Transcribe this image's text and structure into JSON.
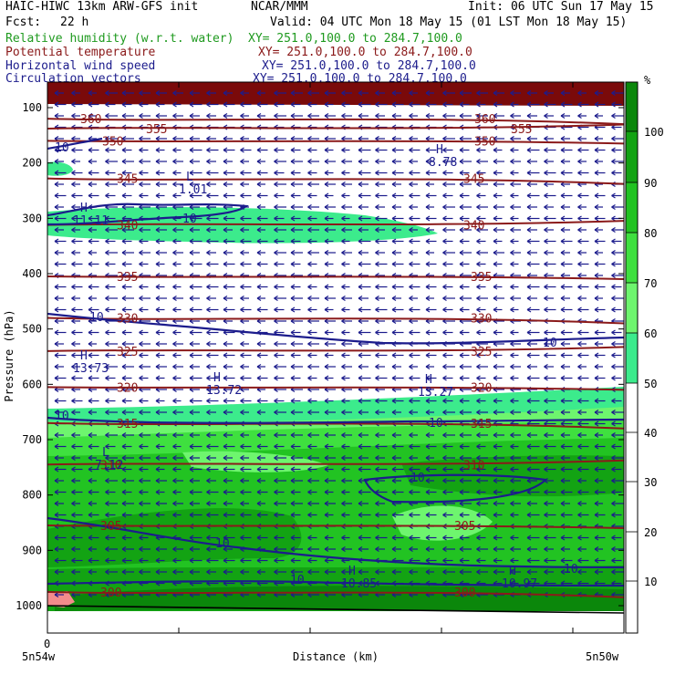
{
  "header": {
    "model": "HAIC-HIWC 13km ARW-GFS init",
    "org": "NCAR/MMM",
    "init": "Init: 06 UTC Sun 17 May 15",
    "fcst_label": "Fcst:",
    "fcst_value": "22 h",
    "valid": "Valid: 04 UTC Mon 18 May 15 (01 LST Mon 18 May 15)",
    "fields": [
      {
        "name": "Relative humidity (w.r.t. water)",
        "xy": "XY= 251.0,100.0 to 284.7,100.0",
        "color": "#1f9a1f"
      },
      {
        "name": "Potential temperature",
        "xy": "XY= 251.0,100.0 to 284.7,100.0",
        "color": "#8b1a1a"
      },
      {
        "name": "Horizontal wind speed",
        "xy": "XY= 251.0,100.0 to 284.7,100.0",
        "color": "#1c1c8c"
      },
      {
        "name": "Circulation vectors",
        "xy": "XY= 251.0,100.0 to 284.7,100.0",
        "color": "#1c1c8c"
      }
    ]
  },
  "chart_data": {
    "type": "heatmap",
    "ylabel": "Pressure (hPa)",
    "xlabel": "Distance (km)",
    "x_start_label": "5n54w",
    "x_end_label": "5n50w",
    "x_zero_label": "0",
    "y_ticks": [
      100,
      200,
      300,
      400,
      500,
      600,
      700,
      800,
      900,
      1000
    ],
    "colorbar": {
      "unit": "%",
      "levels": [
        10,
        20,
        30,
        40,
        50,
        60,
        70,
        80,
        90,
        100
      ],
      "colors": [
        "#ffffff",
        "#ffffff",
        "#ffffff",
        "#ffffff",
        "#ffffff",
        "#3ceb8c",
        "#6ef56e",
        "#3fe03f",
        "#22c322",
        "#13a313",
        "#0b870b",
        "#f28c8c",
        "#ffffff"
      ]
    },
    "theta_contours": [
      {
        "value": 360,
        "p": 120,
        "label": "360"
      },
      {
        "value": 355,
        "p": 138,
        "label": "355"
      },
      {
        "value": 350,
        "p": 160,
        "label": "350"
      },
      {
        "value": 345,
        "p": 228,
        "label": "345"
      },
      {
        "value": 340,
        "p": 312,
        "label": "340"
      },
      {
        "value": 335,
        "p": 405,
        "label": "335"
      },
      {
        "value": 330,
        "p": 480,
        "label": "330"
      },
      {
        "value": 325,
        "p": 540,
        "label": "325"
      },
      {
        "value": 320,
        "p": 605,
        "label": "320"
      },
      {
        "value": 315,
        "p": 670,
        "label": "315"
      },
      {
        "value": 310,
        "p": 745,
        "label": "310"
      },
      {
        "value": 305,
        "p": 855,
        "label": "305"
      },
      {
        "value": 300,
        "p": 975,
        "label": "300"
      }
    ],
    "wind_contour_label": "10",
    "extrema": [
      {
        "kind": "H",
        "value": "8.78"
      },
      {
        "kind": "L",
        "value": "1.01"
      },
      {
        "kind": "H",
        "value": "11.11"
      },
      {
        "kind": "H",
        "value": "13.73"
      },
      {
        "kind": "H",
        "value": "13.72"
      },
      {
        "kind": "H",
        "value": "13.27"
      },
      {
        "kind": "L",
        "value": "7.12"
      },
      {
        "kind": "H",
        "value": "10.85"
      },
      {
        "kind": "H",
        "value": "10.97"
      }
    ]
  }
}
